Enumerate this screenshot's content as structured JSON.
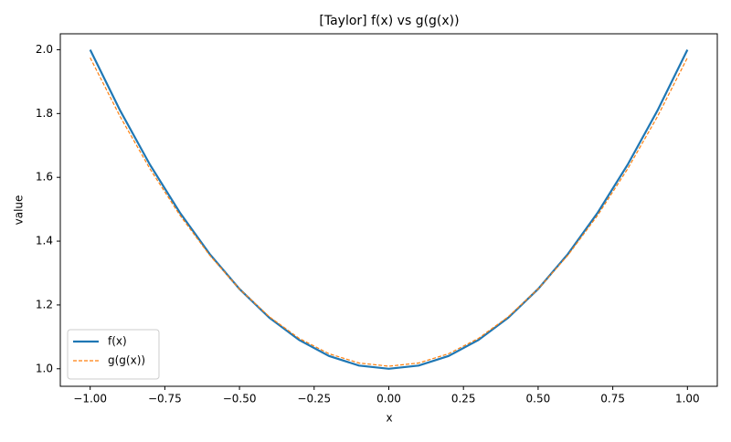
{
  "chart_data": {
    "type": "line",
    "title": "[Taylor] f(x) vs g(g(x))",
    "xlabel": "x",
    "ylabel": "value",
    "x": [
      -1,
      -0.9,
      -0.8,
      -0.7,
      -0.6,
      -0.5,
      -0.4,
      -0.3,
      -0.2,
      -0.1,
      0,
      0.1,
      0.2,
      0.3,
      0.4,
      0.5,
      0.6,
      0.7,
      0.8,
      0.9,
      1
    ],
    "series": [
      {
        "name": "f(x)",
        "color": "#1f77b4",
        "dashed": false,
        "values": [
          2,
          1.81,
          1.64,
          1.49,
          1.36,
          1.25,
          1.16,
          1.09,
          1.04,
          1.01,
          1,
          1.01,
          1.04,
          1.09,
          1.16,
          1.25,
          1.36,
          1.49,
          1.64,
          1.81,
          2
        ]
      },
      {
        "name": "g(g(x))",
        "color": "#ff7f0e",
        "dashed": true,
        "values": [
          1.975,
          1.791,
          1.627,
          1.482,
          1.356,
          1.25,
          1.163,
          1.095,
          1.047,
          1.018,
          1.008,
          1.018,
          1.047,
          1.095,
          1.163,
          1.25,
          1.356,
          1.482,
          1.627,
          1.791,
          1.975
        ]
      }
    ],
    "xlim": [
      -1.1,
      1.1
    ],
    "ylim": [
      0.945,
      2.05
    ],
    "xticks": [
      {
        "value": -1,
        "label": "−1.00"
      },
      {
        "value": -0.75,
        "label": "−0.75"
      },
      {
        "value": -0.5,
        "label": "−0.50"
      },
      {
        "value": -0.25,
        "label": "−0.25"
      },
      {
        "value": 0,
        "label": "0.00"
      },
      {
        "value": 0.25,
        "label": "0.25"
      },
      {
        "value": 0.5,
        "label": "0.50"
      },
      {
        "value": 0.75,
        "label": "0.75"
      },
      {
        "value": 1,
        "label": "1.00"
      }
    ],
    "yticks": [
      {
        "value": 1,
        "label": "1.0"
      },
      {
        "value": 1.2,
        "label": "1.2"
      },
      {
        "value": 1.4,
        "label": "1.4"
      },
      {
        "value": 1.6,
        "label": "1.6"
      },
      {
        "value": 1.8,
        "label": "1.8"
      },
      {
        "value": 2,
        "label": "2.0"
      }
    ],
    "grid": false,
    "legend": "lower left"
  }
}
